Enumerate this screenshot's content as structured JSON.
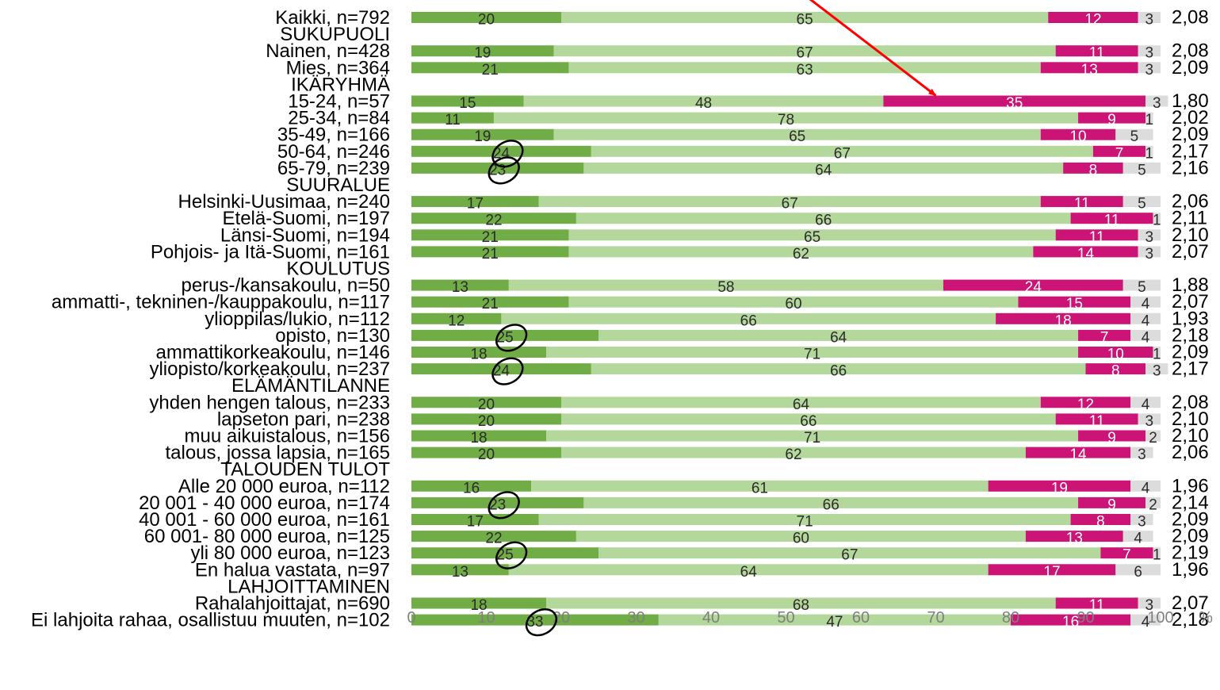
{
  "chart_data": {
    "type": "bar",
    "orientation": "horizontal",
    "stacked": true,
    "percent": true,
    "xlim": [
      0,
      100
    ],
    "xticks": [
      "0",
      "10",
      "20",
      "30",
      "40",
      "50",
      "60",
      "70",
      "80",
      "90",
      "100"
    ],
    "xunit": "%",
    "grid": false,
    "legend": "none",
    "colors": [
      "#70ad47",
      "#b4d79b",
      "#cc1477",
      "#dcdcdc"
    ],
    "label_colors": [
      "#2b2b2b",
      "#2b2b2b",
      "#ffffff",
      "#2b2b2b"
    ],
    "annotations": {
      "arrow": {
        "color": "#ff0000",
        "points_to": "15-24, n=57",
        "segment": 3
      },
      "circled": [
        "50-64, n=246",
        "65-79, n=239",
        "opisto, n=130",
        "yliopisto/korkeakoulu, n=237",
        "20 001 - 40 000 euroa, n=174",
        "yli 80 000 euroa, n=123",
        "Ei lahjoita rahaa, osallistuu muuten, n=102"
      ]
    },
    "rows": [
      {
        "label": "Kaikki, n=792",
        "values": [
          20,
          65,
          12,
          3
        ],
        "mean": "2,08"
      },
      {
        "label": "SUKUPUOLI",
        "header": true
      },
      {
        "label": "Nainen, n=428",
        "values": [
          19,
          67,
          11,
          3
        ],
        "mean": "2,08"
      },
      {
        "label": "Mies, n=364",
        "values": [
          21,
          63,
          13,
          3
        ],
        "mean": "2,09"
      },
      {
        "label": "IKÄRYHMÄ",
        "header": true
      },
      {
        "label": "15-24, n=57",
        "values": [
          15,
          48,
          35,
          3
        ],
        "mean": "1,80"
      },
      {
        "label": "25-34, n=84",
        "values": [
          11,
          78,
          9,
          1
        ],
        "mean": "2,02"
      },
      {
        "label": "35-49, n=166",
        "values": [
          19,
          65,
          10,
          5
        ],
        "mean": "2,09"
      },
      {
        "label": "50-64, n=246",
        "values": [
          24,
          67,
          7,
          1
        ],
        "mean": "2,17"
      },
      {
        "label": "65-79, n=239",
        "values": [
          23,
          64,
          8,
          5
        ],
        "mean": "2,16"
      },
      {
        "label": "SUURALUE",
        "header": true
      },
      {
        "label": "Helsinki-Uusimaa, n=240",
        "values": [
          17,
          67,
          11,
          5
        ],
        "mean": "2,06"
      },
      {
        "label": "Etelä-Suomi, n=197",
        "values": [
          22,
          66,
          11,
          1
        ],
        "mean": "2,11"
      },
      {
        "label": "Länsi-Suomi, n=194",
        "values": [
          21,
          65,
          11,
          3
        ],
        "mean": "2,10"
      },
      {
        "label": "Pohjois- ja Itä-Suomi, n=161",
        "values": [
          21,
          62,
          14,
          3
        ],
        "mean": "2,07"
      },
      {
        "label": "KOULUTUS",
        "header": true
      },
      {
        "label": "perus-/kansakoulu, n=50",
        "values": [
          13,
          58,
          24,
          5
        ],
        "mean": "1,88"
      },
      {
        "label": "ammatti-, tekninen-/kauppakoulu, n=117",
        "values": [
          21,
          60,
          15,
          4
        ],
        "mean": "2,07"
      },
      {
        "label": "ylioppilas/lukio, n=112",
        "values": [
          12,
          66,
          18,
          4
        ],
        "mean": "1,93"
      },
      {
        "label": "opisto, n=130",
        "values": [
          25,
          64,
          7,
          4
        ],
        "mean": "2,18"
      },
      {
        "label": "ammattikorkeakoulu, n=146",
        "values": [
          18,
          71,
          10,
          1
        ],
        "mean": "2,09"
      },
      {
        "label": "yliopisto/korkeakoulu, n=237",
        "values": [
          24,
          66,
          8,
          3
        ],
        "mean": "2,17"
      },
      {
        "label": "ELÄMÄNTILANNE",
        "header": true
      },
      {
        "label": "yhden hengen talous, n=233",
        "values": [
          20,
          64,
          12,
          4
        ],
        "mean": "2,08"
      },
      {
        "label": "lapseton pari, n=238",
        "values": [
          20,
          66,
          11,
          3
        ],
        "mean": "2,10"
      },
      {
        "label": "muu aikuistalous, n=156",
        "values": [
          18,
          71,
          9,
          2
        ],
        "mean": "2,10"
      },
      {
        "label": "talous, jossa lapsia, n=165",
        "values": [
          20,
          62,
          14,
          3
        ],
        "mean": "2,06"
      },
      {
        "label": "TALOUDEN TULOT",
        "header": true
      },
      {
        "label": "Alle 20 000 euroa, n=112",
        "values": [
          16,
          61,
          19,
          4
        ],
        "mean": "1,96"
      },
      {
        "label": "20 001 - 40 000 euroa, n=174",
        "values": [
          23,
          66,
          9,
          2
        ],
        "mean": "2,14"
      },
      {
        "label": "40 001 - 60 000 euroa, n=161",
        "values": [
          17,
          71,
          8,
          3
        ],
        "mean": "2,09"
      },
      {
        "label": "60 001- 80 000 euroa, n=125",
        "values": [
          22,
          60,
          13,
          4
        ],
        "mean": "2,09"
      },
      {
        "label": "yli 80 000 euroa, n=123",
        "values": [
          25,
          67,
          7,
          1
        ],
        "mean": "2,19"
      },
      {
        "label": "En halua vastata, n=97",
        "values": [
          13,
          64,
          17,
          6
        ],
        "mean": "1,96"
      },
      {
        "label": "LAHJOITTAMINEN",
        "header": true
      },
      {
        "label": "Rahalahjoittajat, n=690",
        "values": [
          18,
          68,
          11,
          3
        ],
        "mean": "2,07"
      },
      {
        "label": "Ei lahjoita rahaa, osallistuu muuten, n=102",
        "values": [
          33,
          47,
          16,
          4
        ],
        "mean": "2,18"
      }
    ]
  }
}
